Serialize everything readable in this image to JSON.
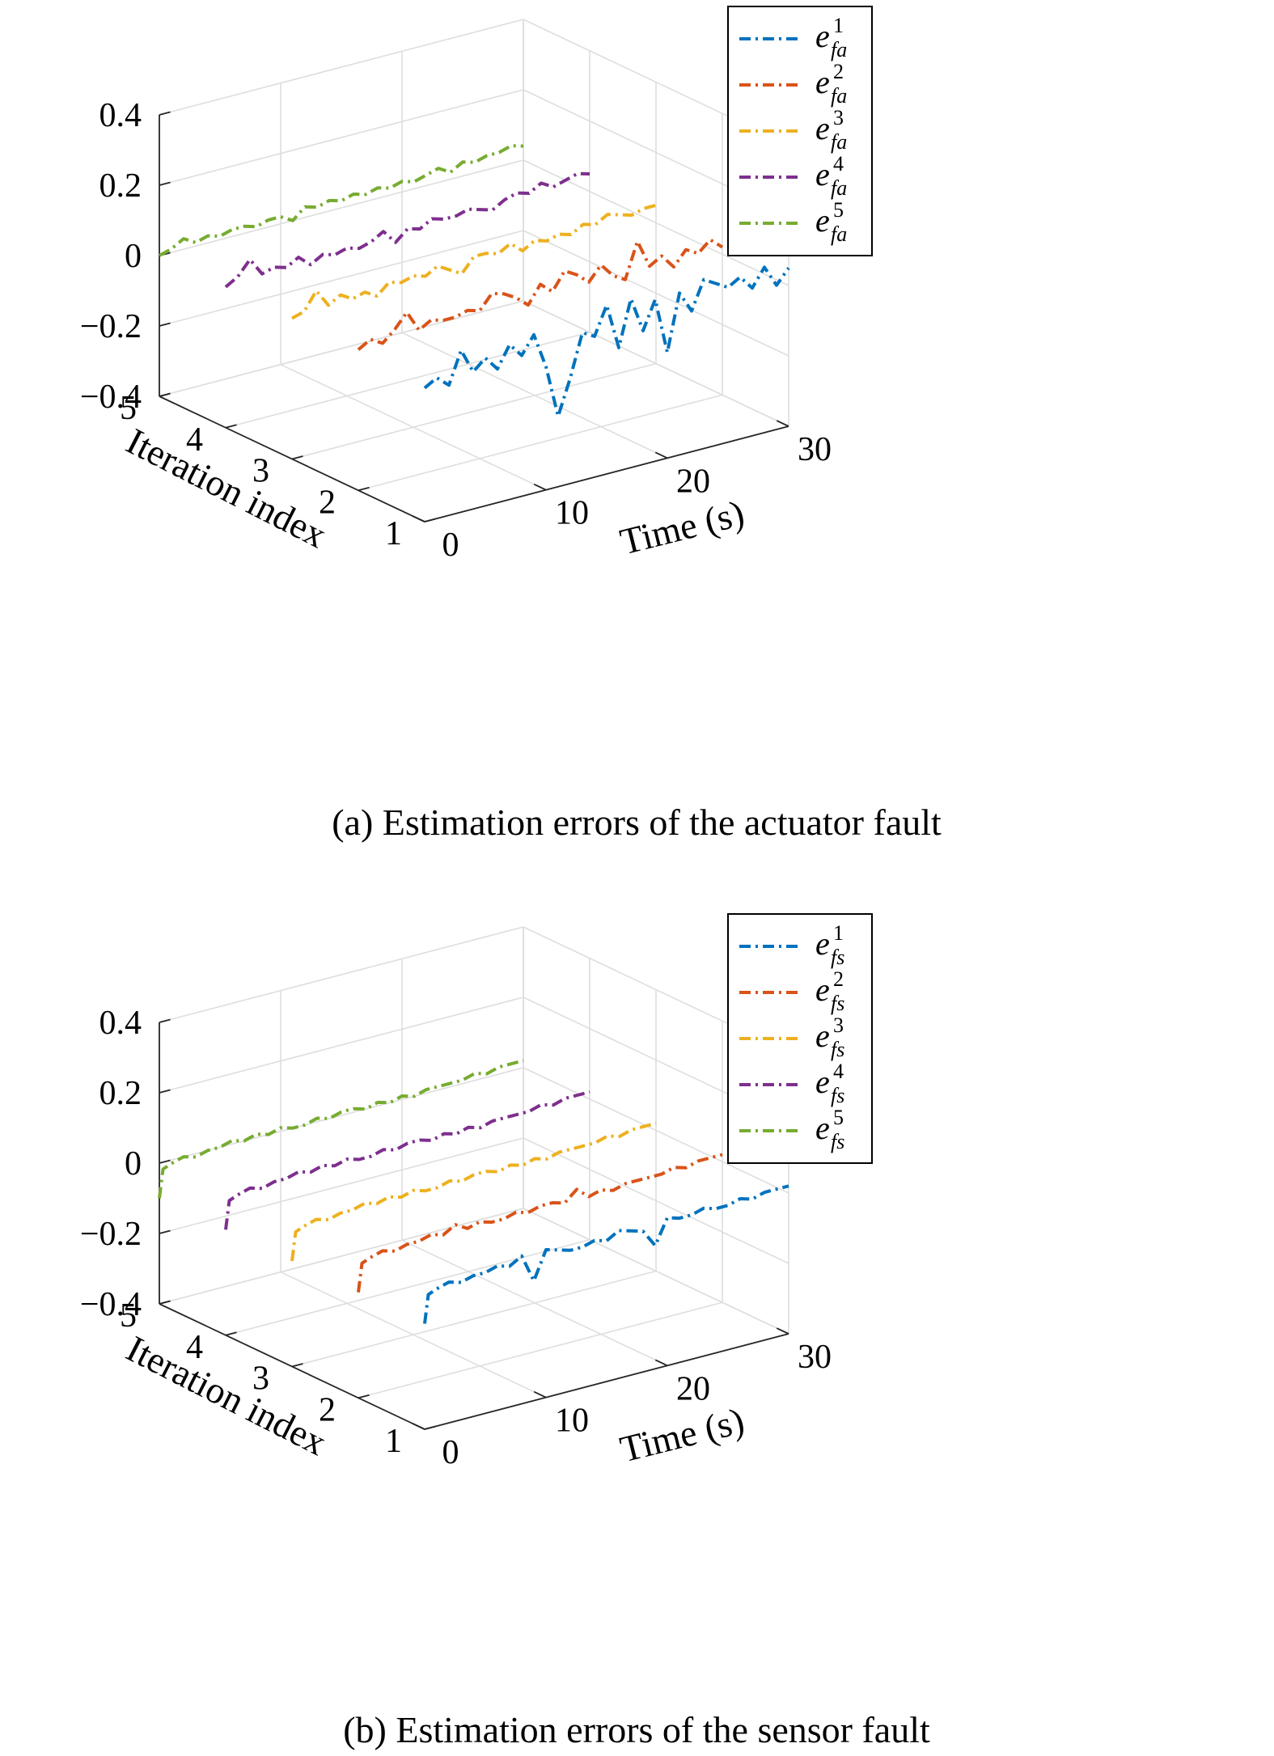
{
  "chart_data": [
    {
      "type": "line",
      "caption": "(a) Estimation errors of the actuator fault",
      "xlabel": "Time (s)",
      "ylabel": "Iteration index",
      "zlabel": "",
      "xlim": [
        0,
        30
      ],
      "ylim": [
        1,
        5
      ],
      "zlim": [
        -0.4,
        0.4
      ],
      "xticks": [
        "0",
        "10",
        "20",
        "30"
      ],
      "yticks": [
        "1",
        "2",
        "3",
        "4",
        "5"
      ],
      "zticks": [
        "−0.4",
        "−0.2",
        "0",
        "0.2",
        "0.4"
      ],
      "grid": true,
      "legend_position": "top-right",
      "legend": [
        {
          "base": "e",
          "sup": "1",
          "sub": "fa"
        },
        {
          "base": "e",
          "sup": "2",
          "sub": "fa"
        },
        {
          "base": "e",
          "sup": "3",
          "sub": "fa"
        },
        {
          "base": "e",
          "sup": "4",
          "sub": "fa"
        },
        {
          "base": "e",
          "sup": "5",
          "sub": "fa"
        }
      ],
      "series": [
        {
          "iteration": 1,
          "color": "#0072BD",
          "x": [
            0,
            1,
            2,
            3,
            4,
            5,
            6,
            7,
            8,
            9,
            10,
            11,
            12,
            13,
            14,
            15,
            16,
            17,
            18,
            19,
            20,
            21,
            22,
            23,
            24,
            25,
            26,
            27,
            28,
            29,
            30
          ],
          "z": [
            -0.02,
            0.0,
            -0.03,
            0.06,
            -0.01,
            0.02,
            -0.02,
            0.04,
            0.0,
            0.05,
            -0.05,
            -0.2,
            -0.1,
            0.02,
            0.0,
            0.08,
            -0.05,
            0.08,
            -0.02,
            0.06,
            -0.1,
            0.06,
            0.0,
            0.08,
            0.06,
            0.04,
            0.06,
            0.02,
            0.07,
            0.01,
            0.05
          ]
        },
        {
          "iteration": 2,
          "color": "#D95319",
          "x": [
            0,
            1,
            2,
            3,
            4,
            5,
            6,
            7,
            8,
            9,
            10,
            11,
            12,
            13,
            14,
            15,
            16,
            17,
            18,
            19,
            20,
            21,
            22,
            23,
            24,
            25,
            26,
            27,
            28,
            29,
            30
          ],
          "z": [
            0.0,
            0.02,
            0.0,
            0.03,
            0.07,
            0.01,
            0.03,
            0.02,
            0.02,
            0.03,
            0.02,
            0.06,
            0.05,
            0.03,
            0.0,
            0.05,
            0.02,
            0.07,
            0.05,
            0.02,
            0.06,
            0.02,
            0.0,
            0.1,
            0.02,
            0.04,
            0.0,
            0.04,
            0.02,
            0.05,
            0.02
          ]
        },
        {
          "iteration": 3,
          "color": "#EDB120",
          "x": [
            0,
            1,
            2,
            3,
            4,
            5,
            6,
            7,
            8,
            9,
            10,
            11,
            12,
            13,
            14,
            15,
            16,
            17,
            18,
            19,
            20,
            21,
            22,
            23,
            24,
            25,
            26,
            27,
            28,
            29,
            30
          ],
          "z": [
            0.0,
            0.01,
            0.06,
            0.01,
            0.03,
            0.01,
            0.02,
            0.0,
            0.03,
            0.02,
            0.03,
            0.02,
            0.04,
            0.02,
            0.0,
            0.04,
            0.04,
            0.03,
            0.05,
            0.02,
            0.04,
            0.03,
            0.04,
            0.03,
            0.05,
            0.04,
            0.06,
            0.05,
            0.04,
            0.05,
            0.05
          ]
        },
        {
          "iteration": 4,
          "color": "#7E2F8E",
          "x": [
            0,
            1,
            2,
            3,
            4,
            5,
            6,
            7,
            8,
            9,
            10,
            11,
            12,
            13,
            14,
            15,
            16,
            17,
            18,
            19,
            20,
            21,
            22,
            23,
            24,
            25,
            26,
            27,
            28,
            29,
            30
          ],
          "z": [
            0.0,
            0.02,
            0.06,
            0.01,
            0.02,
            0.01,
            0.03,
            0.0,
            0.02,
            0.01,
            0.02,
            0.01,
            0.02,
            0.04,
            0.0,
            0.03,
            0.02,
            0.04,
            0.03,
            0.03,
            0.04,
            0.03,
            0.02,
            0.04,
            0.05,
            0.04,
            0.06,
            0.04,
            0.05,
            0.06,
            0.05
          ]
        },
        {
          "iteration": 5,
          "color": "#77AC30",
          "x": [
            0,
            1,
            2,
            3,
            4,
            5,
            6,
            7,
            8,
            9,
            10,
            11,
            12,
            13,
            14,
            15,
            16,
            17,
            18,
            19,
            20,
            21,
            22,
            23,
            24,
            25,
            26,
            27,
            28,
            29,
            30
          ],
          "z": [
            0.0,
            0.01,
            0.03,
            0.01,
            0.02,
            0.01,
            0.02,
            0.02,
            0.01,
            0.02,
            0.02,
            0.0,
            0.03,
            0.02,
            0.03,
            0.02,
            0.03,
            0.02,
            0.03,
            0.02,
            0.03,
            0.02,
            0.03,
            0.04,
            0.02,
            0.04,
            0.03,
            0.04,
            0.04,
            0.05,
            0.04
          ]
        }
      ]
    },
    {
      "type": "line",
      "caption": "(b) Estimation errors of the sensor fault",
      "xlabel": "Time (s)",
      "ylabel": "Iteration index",
      "zlabel": "",
      "xlim": [
        0,
        30
      ],
      "ylim": [
        1,
        5
      ],
      "zlim": [
        -0.4,
        0.4
      ],
      "xticks": [
        "0",
        "10",
        "20",
        "30"
      ],
      "yticks": [
        "1",
        "2",
        "3",
        "4",
        "5"
      ],
      "zticks": [
        "−0.4",
        "−0.2",
        "0",
        "0.2",
        "0.4"
      ],
      "grid": true,
      "legend_position": "top-right",
      "legend": [
        {
          "base": "e",
          "sup": "1",
          "sub": "fs"
        },
        {
          "base": "e",
          "sup": "2",
          "sub": "fs"
        },
        {
          "base": "e",
          "sup": "3",
          "sub": "fs"
        },
        {
          "base": "e",
          "sup": "4",
          "sub": "fs"
        },
        {
          "base": "e",
          "sup": "5",
          "sub": "fs"
        }
      ],
      "series": [
        {
          "iteration": 1,
          "color": "#0072BD",
          "x": [
            0,
            0.3,
            1,
            2,
            3,
            4,
            5,
            6,
            7,
            8,
            9,
            10,
            11,
            12,
            13,
            14,
            15,
            16,
            17,
            18,
            19,
            20,
            21,
            22,
            23,
            24,
            25,
            26,
            27,
            28,
            29,
            30
          ],
          "z": [
            -0.1,
            -0.02,
            -0.01,
            0.0,
            -0.01,
            0.0,
            0.0,
            0.01,
            0.0,
            0.02,
            -0.06,
            0.02,
            0.01,
            0.0,
            0.0,
            0.01,
            0.0,
            0.02,
            0.01,
            0.0,
            -0.05,
            0.02,
            0.01,
            0.01,
            0.02,
            0.01,
            0.01,
            0.02,
            0.01,
            0.02,
            0.02,
            0.02
          ]
        },
        {
          "iteration": 2,
          "color": "#D95319",
          "x": [
            0,
            0.3,
            1,
            2,
            3,
            4,
            5,
            6,
            7,
            8,
            9,
            10,
            11,
            12,
            13,
            14,
            15,
            16,
            17,
            18,
            19,
            20,
            21,
            22,
            23,
            24,
            25,
            26,
            27,
            28,
            29,
            30
          ],
          "z": [
            -0.1,
            -0.02,
            -0.01,
            0.0,
            -0.01,
            0.0,
            0.0,
            0.01,
            0.0,
            0.02,
            0.0,
            0.01,
            0.0,
            0.0,
            0.01,
            0.0,
            0.01,
            0.01,
            0.0,
            0.03,
            0.0,
            0.01,
            0.0,
            0.01,
            0.01,
            0.01,
            0.01,
            0.02,
            0.01,
            0.02,
            0.02,
            0.02
          ]
        },
        {
          "iteration": 3,
          "color": "#EDB120",
          "x": [
            0,
            0.3,
            1,
            2,
            3,
            4,
            5,
            6,
            7,
            8,
            9,
            10,
            11,
            12,
            13,
            14,
            15,
            16,
            17,
            18,
            19,
            20,
            21,
            22,
            23,
            24,
            25,
            26,
            27,
            28,
            29,
            30
          ],
          "z": [
            -0.1,
            -0.02,
            -0.01,
            0.0,
            -0.01,
            0.0,
            0.0,
            0.01,
            0.0,
            0.01,
            0.0,
            0.01,
            0.0,
            0.0,
            0.01,
            0.0,
            0.01,
            0.01,
            0.0,
            0.01,
            0.0,
            0.01,
            0.0,
            0.01,
            0.01,
            0.01,
            0.01,
            0.02,
            0.01,
            0.02,
            0.02,
            0.02
          ]
        },
        {
          "iteration": 4,
          "color": "#7E2F8E",
          "x": [
            0,
            0.3,
            1,
            2,
            3,
            4,
            5,
            6,
            7,
            8,
            9,
            10,
            11,
            12,
            13,
            14,
            15,
            16,
            17,
            18,
            19,
            20,
            21,
            22,
            23,
            24,
            25,
            26,
            27,
            28,
            29,
            30
          ],
          "z": [
            -0.1,
            -0.02,
            -0.01,
            0.0,
            -0.01,
            0.0,
            0.0,
            0.01,
            0.0,
            0.01,
            0.0,
            0.01,
            0.0,
            0.0,
            0.01,
            0.0,
            0.01,
            0.01,
            0.0,
            0.01,
            0.0,
            0.01,
            0.0,
            0.01,
            0.01,
            0.01,
            0.01,
            0.02,
            0.01,
            0.02,
            0.02,
            0.02
          ]
        },
        {
          "iteration": 5,
          "color": "#77AC30",
          "x": [
            0,
            0.3,
            1,
            2,
            3,
            4,
            5,
            6,
            7,
            8,
            9,
            10,
            11,
            12,
            13,
            14,
            15,
            16,
            17,
            18,
            19,
            20,
            21,
            22,
            23,
            24,
            25,
            26,
            27,
            28,
            29,
            30
          ],
          "z": [
            -0.1,
            -0.02,
            -0.01,
            0.0,
            -0.01,
            0.0,
            0.0,
            0.01,
            0.0,
            0.01,
            0.0,
            0.01,
            0.0,
            0.0,
            0.01,
            0.0,
            0.01,
            0.01,
            0.0,
            0.01,
            0.0,
            0.01,
            0.0,
            0.01,
            0.01,
            0.01,
            0.01,
            0.02,
            0.01,
            0.02,
            0.02,
            0.02
          ]
        }
      ]
    }
  ]
}
